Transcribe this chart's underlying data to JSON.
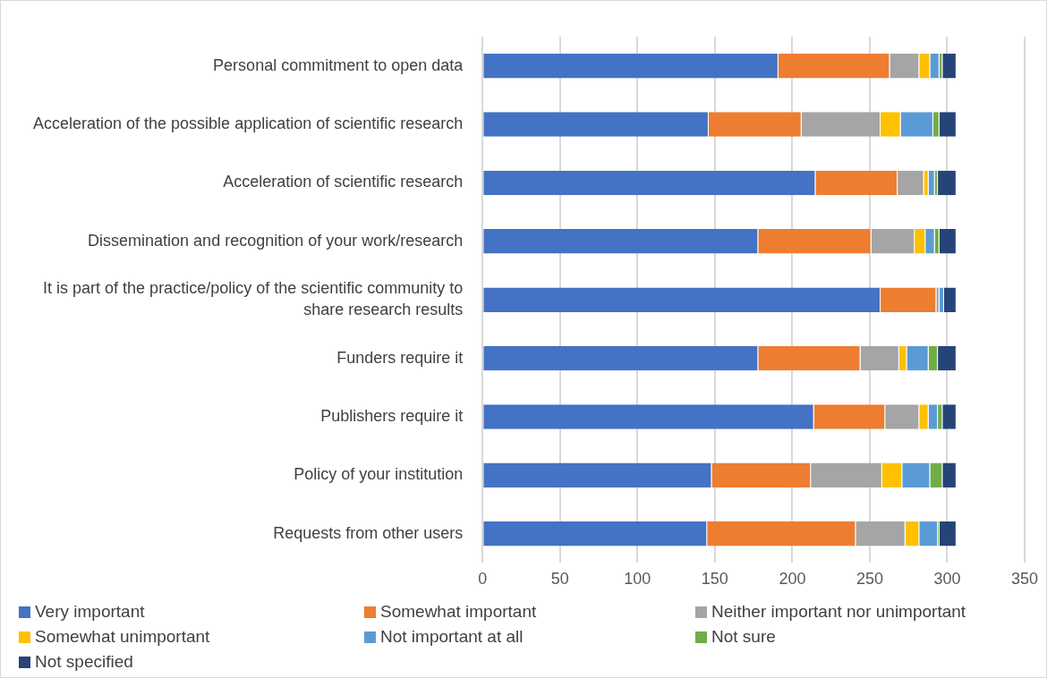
{
  "chart_data": {
    "type": "bar",
    "orientation": "horizontal",
    "stacked": true,
    "categories": [
      "Personal commitment to open data",
      "Acceleration of the possible application of scientific research",
      "Acceleration of scientific research",
      "Dissemination and recognition of your work/research",
      "It is part of the practice/policy of the scientific community to share research results",
      "Funders require it",
      "Publishers require it",
      "Policy of your institution",
      "Requests from other users"
    ],
    "series": [
      {
        "name": "Very important",
        "color": "#4472c4",
        "values": [
          191,
          146,
          215,
          178,
          257,
          178,
          214,
          148,
          145
        ]
      },
      {
        "name": "Somewhat important",
        "color": "#ed7d31",
        "values": [
          72,
          60,
          53,
          73,
          36,
          66,
          46,
          64,
          96
        ]
      },
      {
        "name": "Neither important nor unimportant",
        "color": "#a5a5a5",
        "values": [
          19,
          51,
          17,
          28,
          2,
          25,
          22,
          46,
          32
        ]
      },
      {
        "name": "Somewhat unimportant",
        "color": "#ffc000",
        "values": [
          7,
          13,
          3,
          7,
          0,
          5,
          6,
          13,
          9
        ]
      },
      {
        "name": "Not important at all",
        "color": "#5b9bd5",
        "values": [
          6,
          21,
          4,
          6,
          3,
          14,
          6,
          18,
          12
        ]
      },
      {
        "name": "Not sure",
        "color": "#70ad47",
        "values": [
          2,
          4,
          2,
          3,
          0,
          6,
          3,
          8,
          1
        ]
      },
      {
        "name": "Not specified",
        "color": "#264478",
        "values": [
          9,
          11,
          12,
          11,
          8,
          12,
          9,
          9,
          11
        ]
      }
    ],
    "xlim": [
      0,
      350
    ],
    "xticks": [
      0,
      50,
      100,
      150,
      200,
      250,
      300,
      350
    ],
    "grid": "x",
    "legend": "bottom"
  }
}
